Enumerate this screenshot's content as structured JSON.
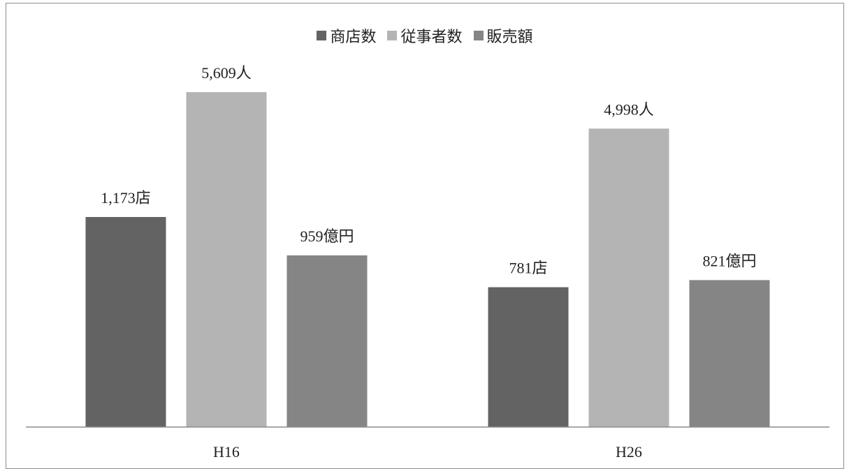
{
  "legend": {
    "items": [
      {
        "label": "商店数",
        "color": "#636363"
      },
      {
        "label": "従事者数",
        "color": "#b4b4b4"
      },
      {
        "label": "販売額",
        "color": "#858585"
      }
    ]
  },
  "chart_data": {
    "type": "bar",
    "categories": [
      "H16",
      "H26"
    ],
    "series": [
      {
        "name": "商店数",
        "values": [
          1173,
          781
        ],
        "labels": [
          "1,173店",
          "781店"
        ],
        "color": "#636363"
      },
      {
        "name": "従事者数",
        "values": [
          5609,
          4998
        ],
        "labels": [
          "5,609人",
          "4,998人"
        ],
        "color": "#b4b4b4"
      },
      {
        "name": "販売額",
        "values": [
          959,
          821
        ],
        "labels": [
          "959億円",
          "821億円"
        ],
        "color": "#858585"
      }
    ],
    "grid": false,
    "legend_position": "top",
    "note": "series plotted on independent scales; bar heights are relative within each series"
  }
}
